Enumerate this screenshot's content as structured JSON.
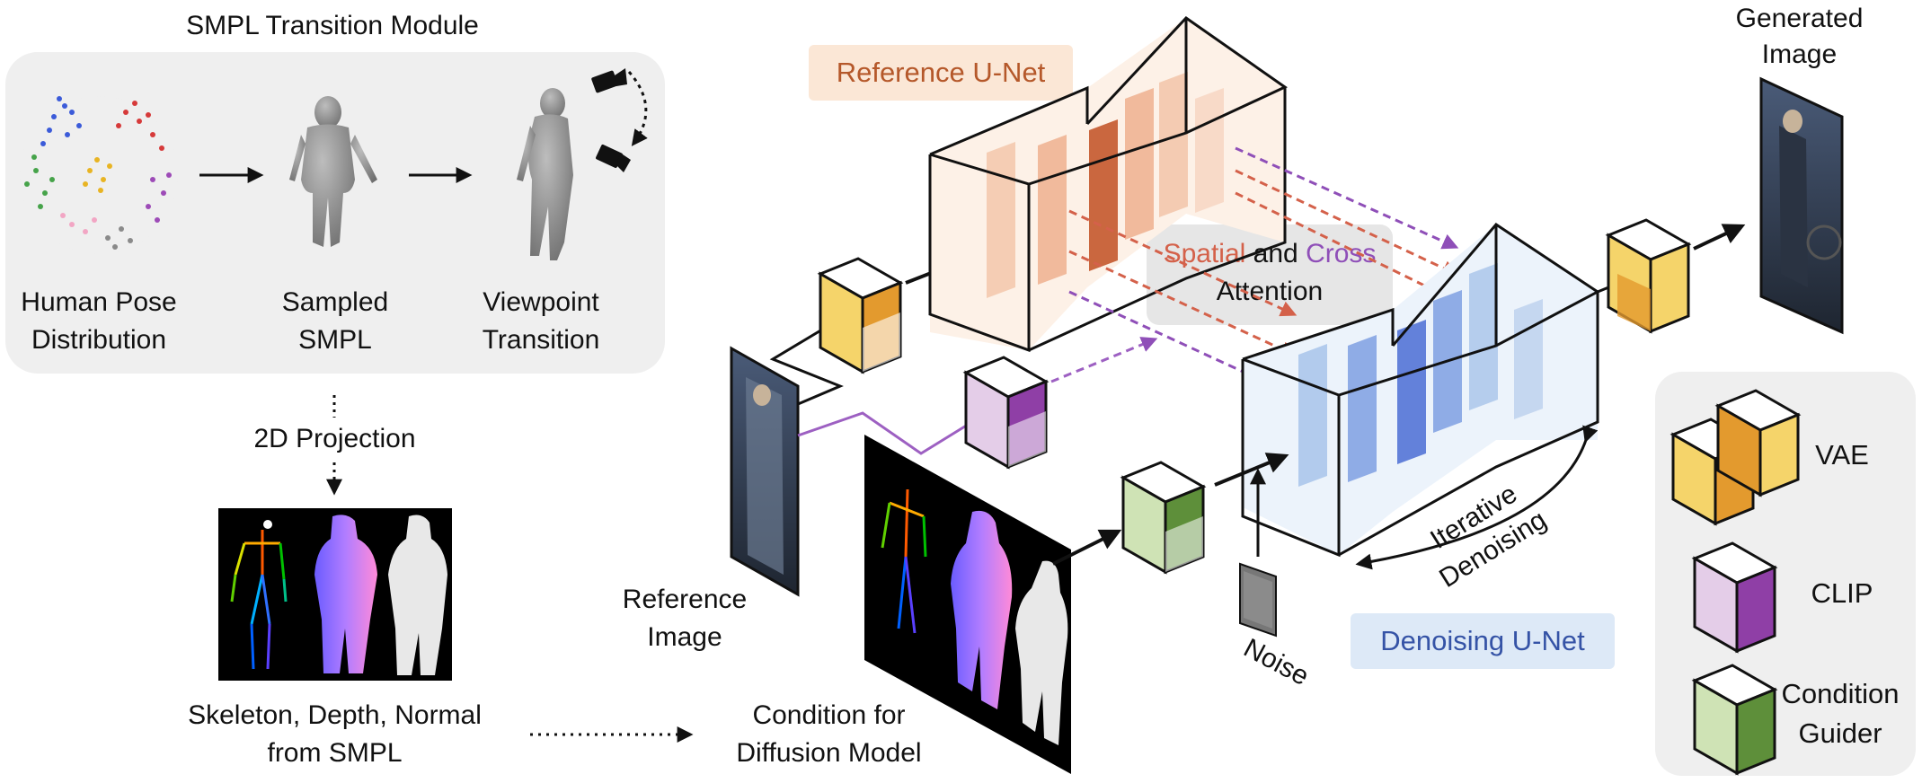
{
  "smpl_module": {
    "title": "SMPL Transition Module",
    "steps": [
      {
        "line1": "Human Pose",
        "line2": "Distribution"
      },
      {
        "line1": "Sampled",
        "line2": "SMPL"
      },
      {
        "line1": "Viewpoint",
        "line2": "Transition"
      }
    ]
  },
  "projection_label": "2D Projection",
  "condition_source": {
    "line1": "Skeleton, Depth, Normal",
    "line2": "from SMPL"
  },
  "condition_target": {
    "line1": "Condition for",
    "line2": "Diffusion Model"
  },
  "reference_image": {
    "line1": "Reference",
    "line2": "Image"
  },
  "reference_unet": {
    "label": "Reference U-Net"
  },
  "denoising_unet": {
    "label": "Denoising U-Net"
  },
  "attention": {
    "spatial": "Spatial",
    "and": "and",
    "cross": "Cross",
    "line2": "Attention"
  },
  "noise_label": "Noise",
  "iterative": {
    "line1": "Iterative",
    "line2": "Denoising"
  },
  "generated": {
    "line1": "Generated",
    "line2": "Image"
  },
  "legend": [
    {
      "label": "VAE"
    },
    {
      "label": "CLIP"
    },
    {
      "label": "Condition",
      "label2": "Guider"
    }
  ],
  "colors": {
    "vae_yellow": "#f5d46a",
    "vae_orange": "#e39a2e",
    "clip_light": "#e4cde8",
    "clip_dark": "#8f3fa6",
    "guider_light": "#cfe3b5",
    "guider_dark": "#5e8f3a",
    "ref_unet_bg": "#fbe7d6",
    "ref_unet_text": "#b5582a",
    "den_unet_bg": "#dde9f7",
    "den_unet_text": "#3553a6",
    "spatial": "#d4614a",
    "cross": "#8f4fb8"
  }
}
